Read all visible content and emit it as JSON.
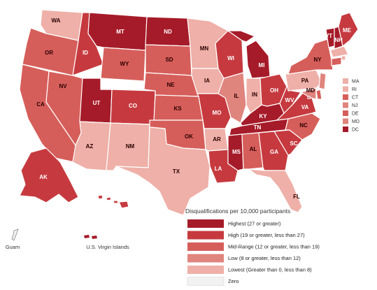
{
  "colors": {
    "highest": "#a61b29",
    "high": "#c63a3f",
    "mid": "#d65e5a",
    "low": "#e0847e",
    "lowest": "#eeb0a8",
    "zero": "#f2f2f2"
  },
  "legend": {
    "title": "Disqualifications per 10,000 participants",
    "items": [
      {
        "key": "highest",
        "label": "Highest (27 or greater)"
      },
      {
        "key": "high",
        "label": "High (19 or greater, less than 27)"
      },
      {
        "key": "mid",
        "label": "Mid-Range (12 or greater, less than 19)"
      },
      {
        "key": "low",
        "label": "Low (8 or greater, less than 12)"
      },
      {
        "key": "lowest",
        "label": "Lowest (Greater than 0, less than 8)"
      },
      {
        "key": "zero",
        "label": "Zero"
      }
    ]
  },
  "states": {
    "WA": "lowest",
    "OR": "mid",
    "CA": "mid",
    "ID": "high",
    "NV": "mid",
    "MT": "highest",
    "WY": "mid",
    "UT": "highest",
    "AZ": "lowest",
    "CO": "high",
    "NM": "lowest",
    "ND": "highest",
    "SD": "mid",
    "NE": "mid",
    "KS": "mid",
    "OK": "mid",
    "TX": "lowest",
    "MN": "lowest",
    "IA": "lowest",
    "MO": "high",
    "AR": "lowest",
    "LA": "high",
    "WI": "high",
    "IL": "low",
    "MI": "highest",
    "IN": "lowest",
    "OH": "high",
    "KY": "highest",
    "TN": "highest",
    "MS": "highest",
    "AL": "mid",
    "GA": "high",
    "FL": "lowest",
    "SC": "high",
    "NC": "mid",
    "VA": "high",
    "WV": "high",
    "PA": "lowest",
    "NY": "mid",
    "VT": "highest",
    "NH": "highest",
    "ME": "high",
    "MA": "lowest",
    "RI": "lowest",
    "CT": "mid",
    "NJ": "low",
    "DE": "mid",
    "MD": "low",
    "DC": "highest",
    "AK": "high",
    "HI": "high"
  },
  "small_states": [
    {
      "code": "MA",
      "key": "lowest"
    },
    {
      "code": "RI",
      "key": "lowest"
    },
    {
      "code": "CT",
      "key": "mid"
    },
    {
      "code": "NJ",
      "key": "low"
    },
    {
      "code": "DE",
      "key": "mid"
    },
    {
      "code": "MD",
      "key": "low"
    },
    {
      "code": "DC",
      "key": "highest"
    }
  ],
  "territories": {
    "guam": {
      "label": "Guam",
      "key": "zero"
    },
    "usvi": {
      "label": "U.S. Virgin Islands",
      "key": "highest"
    }
  }
}
